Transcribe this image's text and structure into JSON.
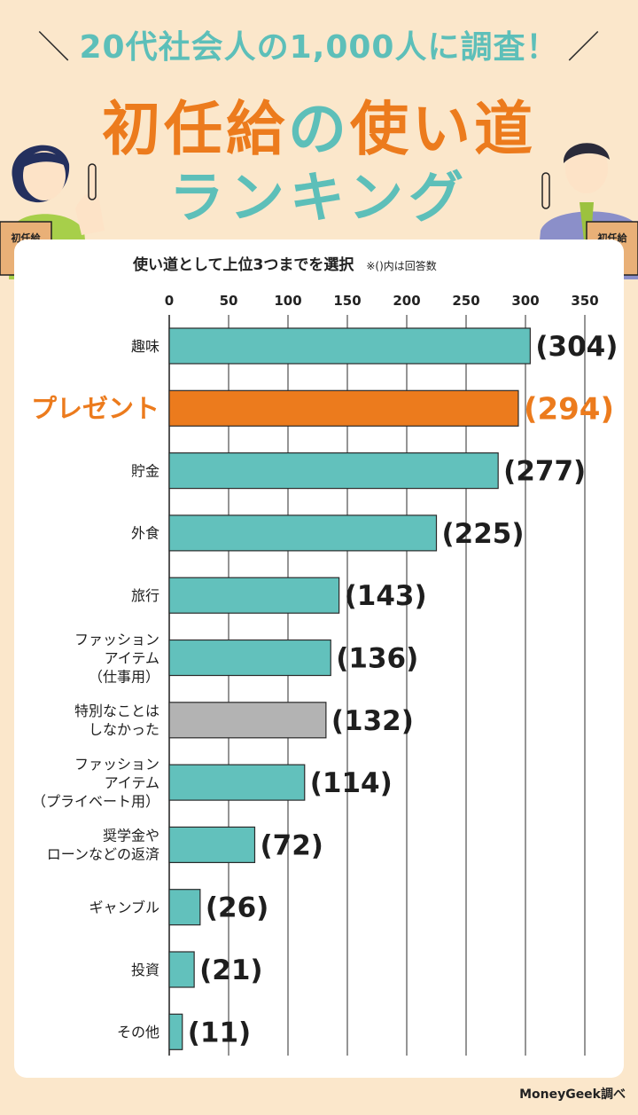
{
  "header": {
    "subtitle": "20代社会人の1,000人に調査！",
    "title_main": "初任給",
    "title_no": "の",
    "title_rest": "使い道",
    "title_line2": "ランキング",
    "envelope_label": "初任給"
  },
  "chart_caption": "使い道として上位3つまでを選択",
  "chart_note": "※()内は回答数",
  "footer": "MoneyGeek調べ",
  "colors": {
    "bar_default": "#62c1bc",
    "bar_highlight": "#ec7b1d",
    "bar_none": "#b3b3b3",
    "background": "#fbe7cb"
  },
  "chart_data": {
    "type": "bar",
    "orientation": "horizontal",
    "title": "使い道として上位3つまでを選択",
    "xlim": [
      0,
      350
    ],
    "x_ticks": [
      0,
      50,
      100,
      150,
      200,
      250,
      300,
      350
    ],
    "grid": true,
    "categories": [
      [
        "趣味"
      ],
      [
        "プレゼント"
      ],
      [
        "貯金"
      ],
      [
        "外食"
      ],
      [
        "旅行"
      ],
      [
        "ファッション",
        "アイテム",
        "（仕事用）"
      ],
      [
        "特別なことは",
        "しなかった"
      ],
      [
        "ファッション",
        "アイテム",
        "（プライベート用）"
      ],
      [
        "奨学金や",
        "ローンなどの返済"
      ],
      [
        "ギャンブル"
      ],
      [
        "投資"
      ],
      [
        "その他"
      ]
    ],
    "values": [
      304,
      294,
      277,
      225,
      143,
      136,
      132,
      114,
      72,
      26,
      21,
      11
    ],
    "value_labels": [
      "(304)",
      "(294)",
      "(277)",
      "(225)",
      "(143)",
      "(136)",
      "(132)",
      "(114)",
      "(72)",
      "(26)",
      "(21)",
      "(11)"
    ],
    "bar_styles": [
      "default",
      "highlight",
      "default",
      "default",
      "default",
      "default",
      "none",
      "default",
      "default",
      "default",
      "default",
      "default"
    ]
  }
}
